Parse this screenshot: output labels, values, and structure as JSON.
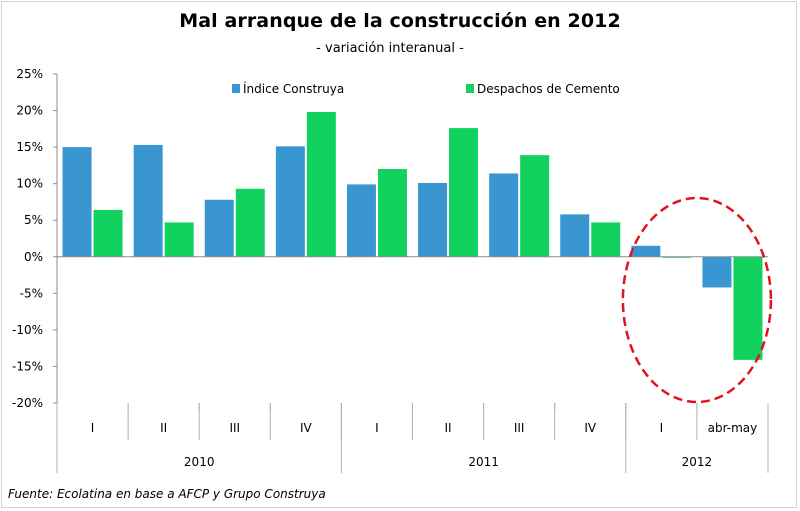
{
  "chart_data": {
    "type": "bar",
    "title": "Mal arranque de la construcción en 2012",
    "subtitle": "- variación interanual -",
    "source": "Fuente: Ecolatina en base a AFCP y Grupo Construya",
    "categories": [
      "I",
      "II",
      "III",
      "IV",
      "I",
      "II",
      "III",
      "IV",
      "I",
      "abr-may"
    ],
    "groups": [
      {
        "label": "2010",
        "count": 4
      },
      {
        "label": "2011",
        "count": 4
      },
      {
        "label": "2012",
        "count": 2
      }
    ],
    "series": [
      {
        "name": "Índice Construya",
        "color": "#3a96d0",
        "values": [
          15.0,
          15.3,
          7.8,
          15.1,
          9.9,
          10.1,
          11.4,
          5.8,
          1.5,
          -4.2
        ]
      },
      {
        "name": "Despachos de Cemento",
        "color": "#11d15f",
        "values": [
          6.4,
          4.7,
          9.3,
          19.8,
          12.0,
          17.6,
          13.9,
          4.7,
          -0.1,
          -14.1
        ]
      }
    ],
    "ylim": [
      -20,
      25
    ],
    "yticks": [
      25,
      20,
      15,
      10,
      5,
      0,
      -5,
      -10,
      -15,
      -20
    ],
    "ytick_labels": [
      "25%",
      "20%",
      "15%",
      "10%",
      "5%",
      "0%",
      "-5%",
      "-10%",
      "-15%",
      "-20%"
    ],
    "xlabel": "",
    "ylabel": "",
    "grid": false,
    "legend_position": "top",
    "annotation": {
      "type": "dashed-ellipse",
      "color": "#e0141e",
      "highlights": "2012"
    }
  }
}
